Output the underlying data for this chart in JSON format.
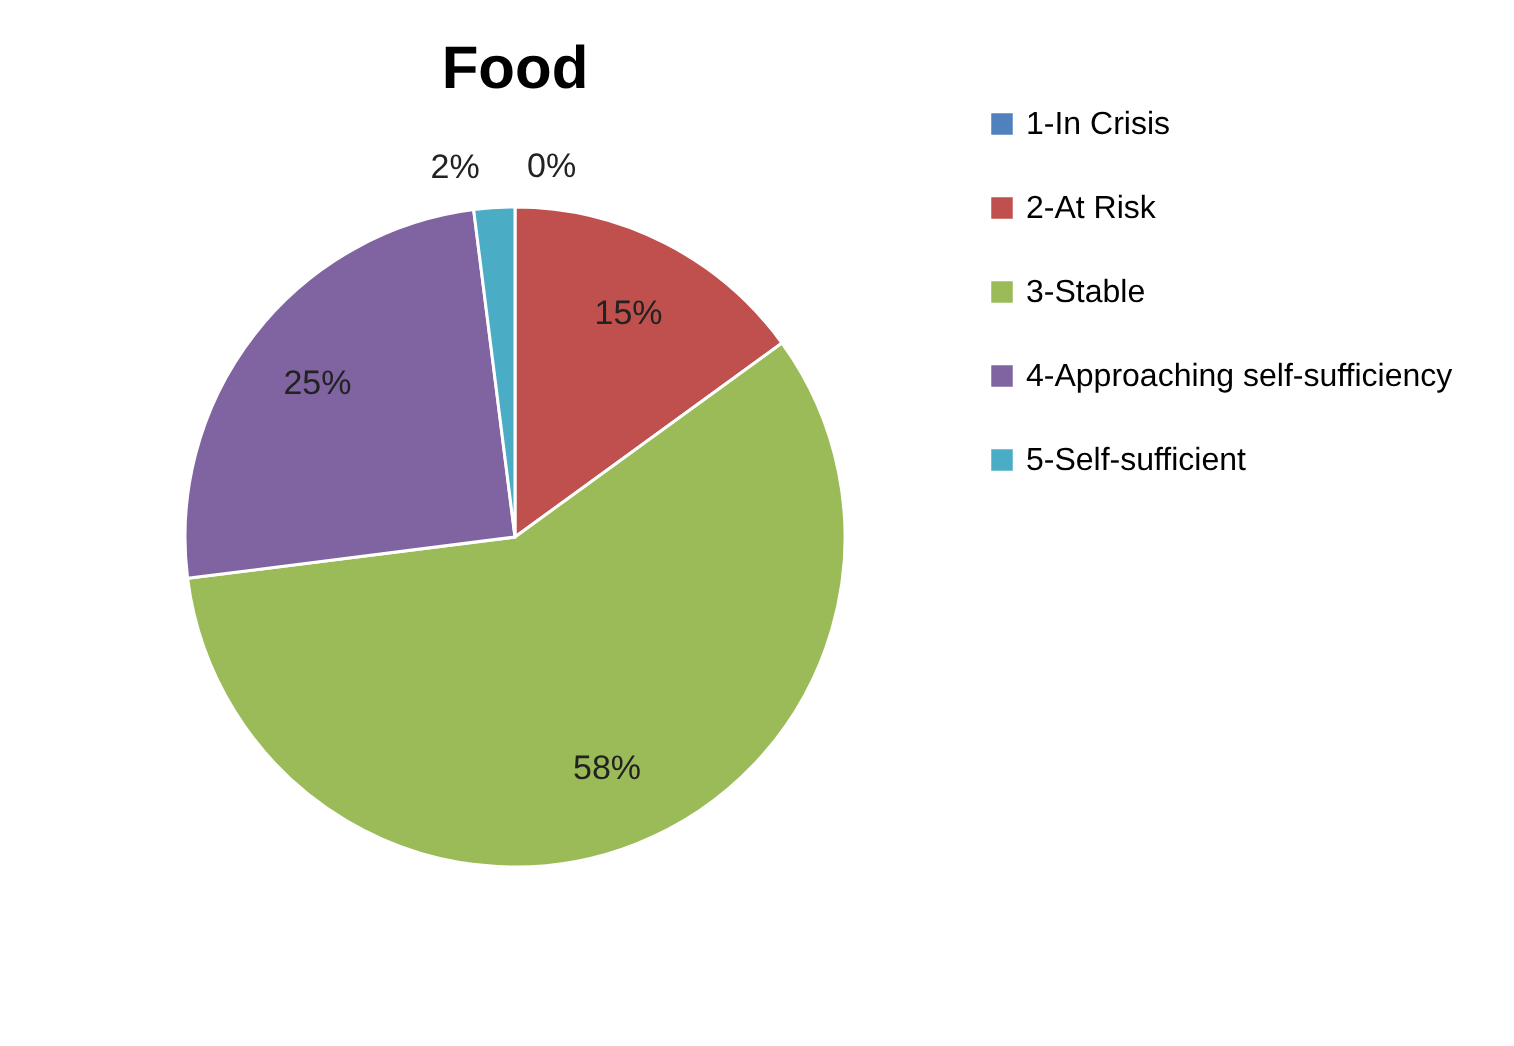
{
  "chart_data": {
    "type": "pie",
    "title": "Food",
    "categories": [
      "1-In Crisis",
      "2-At Risk",
      "3-Stable",
      "4-Approaching self-sufficiency",
      "5-Self-sufficient"
    ],
    "values": [
      0,
      15,
      58,
      25,
      2
    ],
    "colors": [
      "#4f81bd",
      "#c0504d",
      "#9bbb59",
      "#8064a2",
      "#4bacc6"
    ],
    "value_labels": [
      "0%",
      "15%",
      "58%",
      "25%",
      "2%"
    ],
    "legend": "right"
  }
}
